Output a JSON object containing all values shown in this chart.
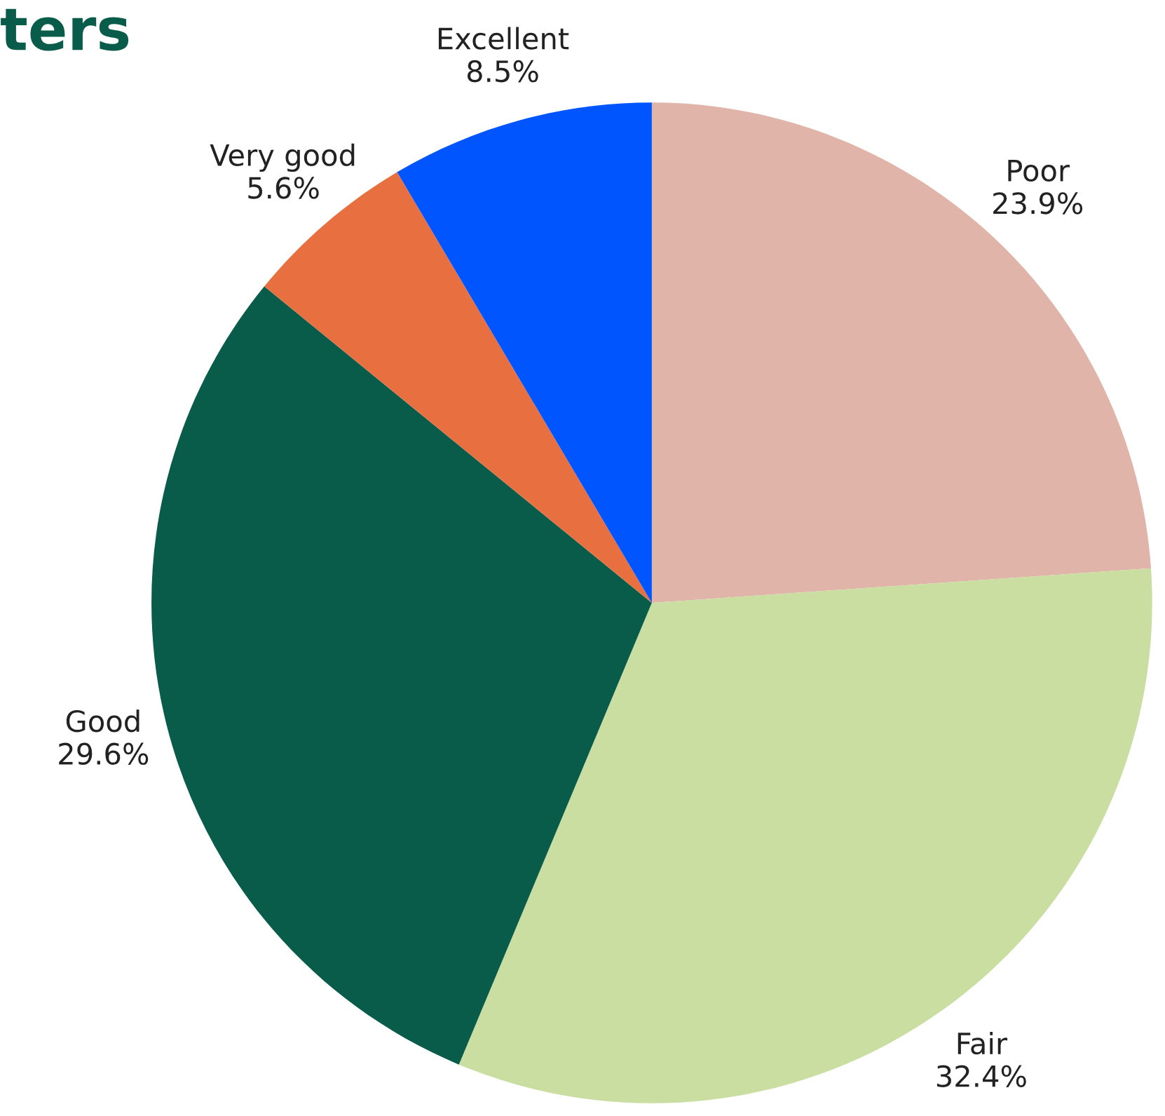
{
  "chart_data": {
    "type": "pie",
    "title": "ters",
    "categories": [
      "Poor",
      "Fair",
      "Good",
      "Very good",
      "Excellent"
    ],
    "values": [
      23.9,
      32.4,
      29.6,
      5.6,
      8.5
    ],
    "value_labels": [
      "23.9%",
      "32.4%",
      "29.6%",
      "5.6%",
      "8.5%"
    ],
    "colors": [
      "#e0b4a8",
      "#c9dea0",
      "#0a5c4a",
      "#e87040",
      "#0055ff"
    ]
  }
}
